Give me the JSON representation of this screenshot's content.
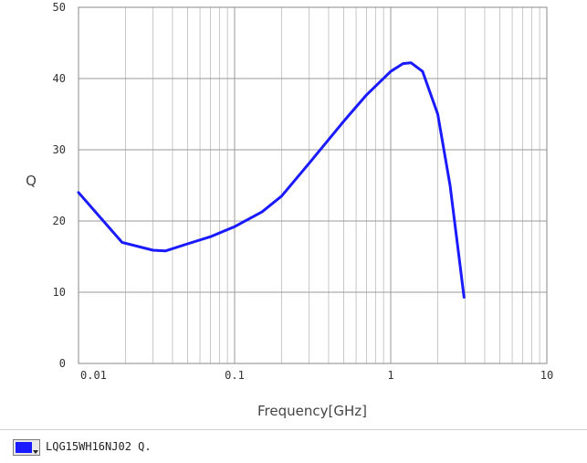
{
  "chart_data": {
    "type": "line",
    "title": "",
    "xlabel": "Frequency[GHz]",
    "ylabel": "Q",
    "x_scale": "log",
    "xlim": [
      0.01,
      10
    ],
    "ylim": [
      0,
      50
    ],
    "x_ticks": [
      {
        "value": 0.01,
        "label": "0.01"
      },
      {
        "value": 0.1,
        "label": "0.1"
      },
      {
        "value": 1,
        "label": "1"
      },
      {
        "value": 10,
        "label": "10"
      }
    ],
    "y_ticks": [
      {
        "value": 0,
        "label": "0"
      },
      {
        "value": 10,
        "label": "10"
      },
      {
        "value": 20,
        "label": "20"
      },
      {
        "value": 30,
        "label": "30"
      },
      {
        "value": 40,
        "label": "40"
      },
      {
        "value": 50,
        "label": "50"
      }
    ],
    "grid": true,
    "line_color": "#1a1aff",
    "series": [
      {
        "name": "LQG15WH16NJ02 Q.",
        "x": [
          0.01,
          0.019,
          0.03,
          0.036,
          0.05,
          0.07,
          0.1,
          0.15,
          0.2,
          0.3,
          0.5,
          0.7,
          1.0,
          1.2,
          1.35,
          1.6,
          2.0,
          2.4,
          2.7,
          2.95
        ],
        "y": [
          24.0,
          17.0,
          15.9,
          15.8,
          16.8,
          17.8,
          19.2,
          21.3,
          23.5,
          28.1,
          34.0,
          37.7,
          41.0,
          42.1,
          42.2,
          41.0,
          35.0,
          25.0,
          16.0,
          9.3
        ]
      }
    ]
  },
  "legend": {
    "label": "LQG15WH16NJ02 Q.",
    "swatch_color": "#1a1aff"
  }
}
